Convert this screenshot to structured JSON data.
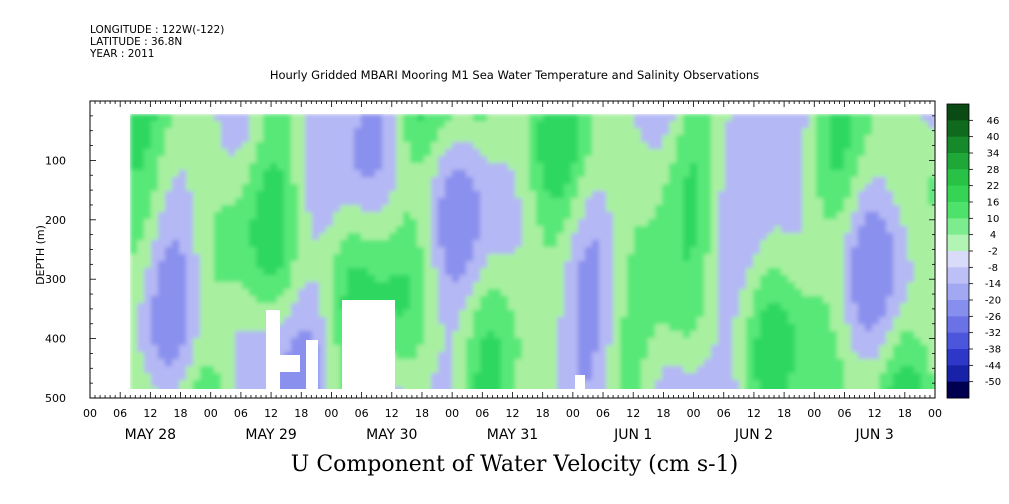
{
  "header": {
    "longitude": "LONGITUDE : 122W(-122)",
    "latitude": "LATITUDE : 36.8N",
    "year": "YEAR : 2011",
    "title": "Hourly Gridded MBARI Mooring M1 Sea Water Temperature and Salinity Observations"
  },
  "caption": "U Component of Water Velocity (cm s-1)",
  "chart_data": {
    "type": "heatmap",
    "title": "Hourly Gridded MBARI Mooring M1 Sea Water Temperature and Salinity Observations",
    "xlabel": "",
    "ylabel": "DEPTH (m)",
    "colorbar_label": "U Component of Water Velocity (cm s-1)",
    "x_start": "2011-05-28 00:00",
    "x_end": "2011-06-04 00:00",
    "x_tick_hours": [
      "00",
      "06",
      "12",
      "18",
      "00",
      "06",
      "12",
      "18",
      "00",
      "06",
      "12",
      "18",
      "00",
      "06",
      "12",
      "18",
      "00",
      "06",
      "12",
      "18",
      "00",
      "06",
      "12",
      "18",
      "00",
      "06",
      "12",
      "18",
      "00"
    ],
    "day_labels": [
      "MAY 28",
      "MAY 29",
      "MAY 30",
      "MAY 31",
      "JUN  1",
      "JUN  2",
      "JUN  3"
    ],
    "ylim": [
      0,
      500
    ],
    "y_reversed": true,
    "y_ticks": [
      100,
      200,
      300,
      400,
      500
    ],
    "colorbar_levels": [
      46,
      40,
      34,
      28,
      22,
      16,
      10,
      4,
      -2,
      -8,
      -14,
      -20,
      -26,
      -32,
      -38,
      -44,
      -50
    ],
    "palette": {
      "strong_positive": "#0a4a14",
      "positive": "#3fe36a",
      "weak_positive": "#a8f0a0",
      "weak_negative": "#b4b8f4",
      "negative": "#8a90ee",
      "strong_negative": "#000050"
    }
  }
}
